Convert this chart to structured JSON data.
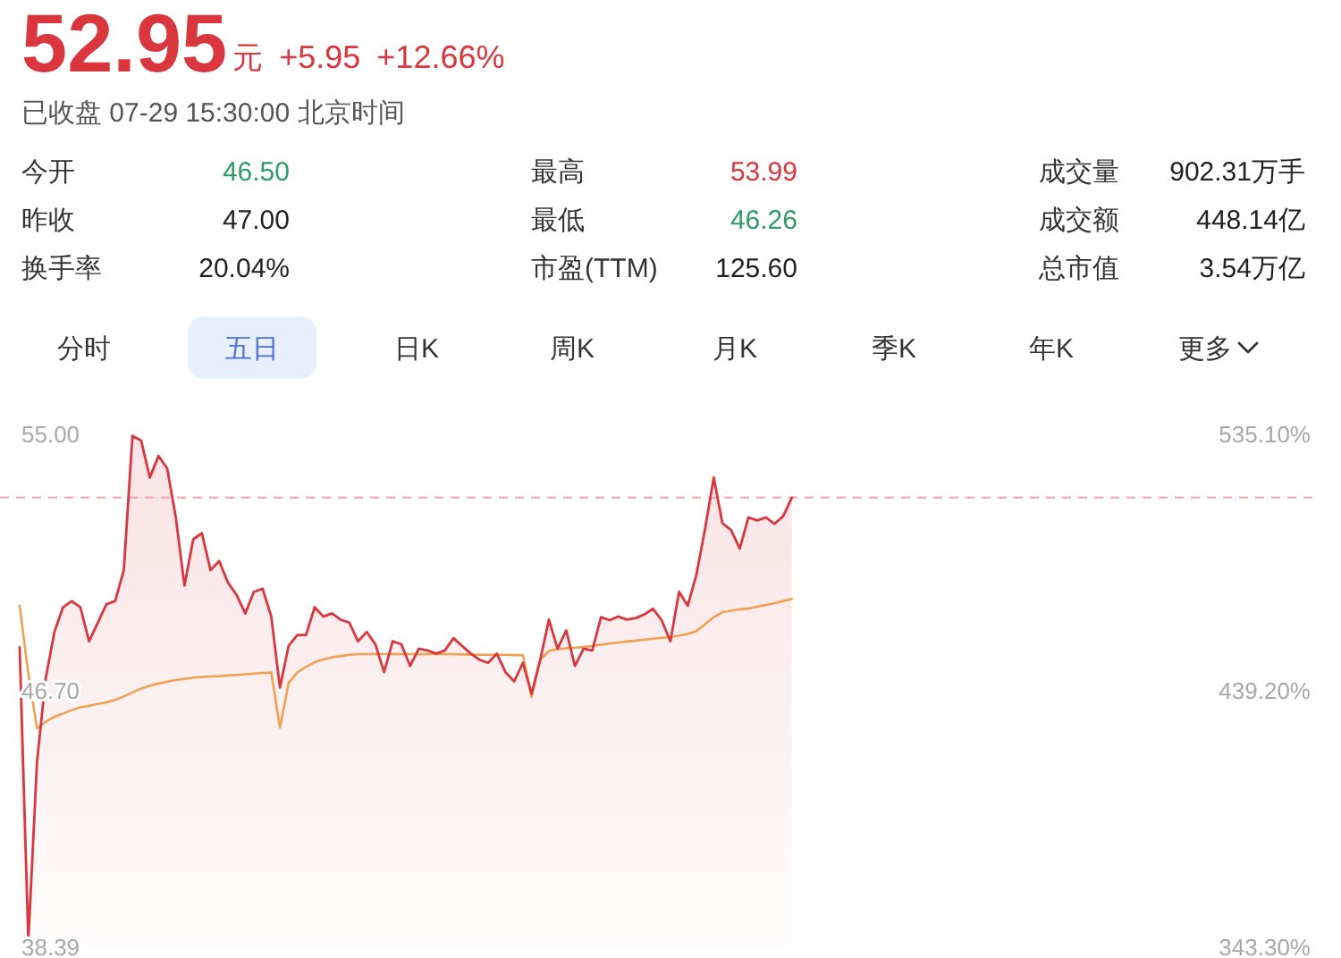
{
  "chart_data": [
    {
      "type": "other",
      "title": "52.95",
      "subtitle": "已收盘 07-29 15:30:00 北京时间",
      "annotations": [
        "元",
        "+5.95",
        "+12.66%",
        "今开",
        "46.50",
        "昨收",
        "47.00",
        "换手率",
        "20.04%",
        "最高",
        "53.99",
        "最低",
        "46.26",
        "市盈(TTM)",
        "125.60",
        "成交量",
        "902.31万手",
        "成交额",
        "448.14亿",
        "总市值",
        "3.54万亿",
        "分时",
        "五日",
        "日K",
        "周K",
        "月K",
        "季K",
        "年K",
        "更多"
      ]
    },
    {
      "type": "line",
      "categories": [
        null,
        null,
        null,
        null,
        null,
        null,
        null,
        null,
        null,
        null,
        null,
        null,
        null,
        null,
        null,
        null,
        null,
        null,
        null,
        null,
        null,
        null,
        null,
        null,
        null,
        null,
        null,
        null,
        null,
        null,
        null,
        null,
        null,
        null,
        null,
        null,
        null,
        null,
        null,
        null,
        null,
        null,
        null,
        null,
        null,
        null,
        null,
        null,
        null,
        null,
        null,
        null,
        null,
        null,
        null,
        null,
        null,
        null,
        null,
        null,
        null,
        null,
        null,
        null,
        null,
        null,
        null,
        null,
        null,
        null,
        null,
        null,
        null,
        null,
        null,
        null,
        null,
        null,
        null,
        null,
        null,
        null,
        null,
        null,
        null,
        null,
        null,
        null,
        null,
        null,
        null,
        null,
        null,
        null,
        null,
        null,
        null,
        null,
        null,
        null,
        null,
        null,
        null,
        null,
        null,
        null,
        null,
        null,
        null,
        null,
        null,
        null,
        null,
        null,
        null,
        null,
        null,
        null,
        null,
        null,
        null,
        null,
        null,
        null,
        null,
        null,
        null,
        null,
        null,
        null,
        null,
        null,
        null,
        null,
        null,
        null,
        null,
        null,
        null,
        null,
        null,
        null,
        null,
        null,
        null,
        null,
        null,
        null,
        null,
        null
      ],
      "series": [
        {
          "type": "area",
          "color": "#d9363e",
          "values": [
            48.1,
            38.6,
            44.4,
            47.1,
            48.6,
            49.4,
            49.6,
            49.4,
            48.3,
            48.9,
            49.5,
            49.6,
            50.6,
            54.95,
            54.8,
            53.6,
            54.3,
            53.9,
            52.3,
            50.1,
            51.6,
            51.8,
            50.6,
            50.9,
            50.2,
            49.8,
            49.2,
            49.9,
            50.0,
            49.1,
            46.8,
            48.15,
            48.5,
            48.5,
            49.4,
            49.1,
            49.2,
            49.0,
            48.9,
            48.3,
            48.6,
            48.2,
            47.3,
            48.3,
            48.2,
            47.5,
            48.06,
            48.0,
            47.9,
            48.0,
            48.4,
            48.15,
            47.9,
            47.7,
            47.6,
            47.9,
            47.3,
            47.0,
            47.6,
            46.6,
            47.7,
            49.0,
            48.06,
            48.65,
            47.5,
            48.06,
            48.0,
            49.08,
            48.98,
            49.1,
            49.0,
            49.05,
            49.17,
            49.35,
            48.98,
            48.3,
            49.9,
            49.45,
            50.45,
            51.94,
            53.6,
            52.12,
            51.9,
            51.3,
            52.31,
            52.21,
            52.31,
            52.1,
            52.35,
            52.95,
            null,
            null,
            null,
            null,
            null,
            null,
            null,
            null,
            null,
            null,
            null,
            null,
            null,
            null,
            null,
            null,
            null,
            null,
            null,
            null,
            null,
            null,
            null,
            null,
            null,
            null,
            null,
            null,
            null,
            null,
            null,
            null,
            null,
            null,
            null,
            null,
            null,
            null,
            null,
            null,
            null,
            null,
            null,
            null,
            null,
            null,
            null,
            null,
            null,
            null,
            null,
            null,
            null,
            null,
            null,
            null,
            null,
            null,
            null,
            null
          ]
        },
        {
          "type": "line",
          "color": "#f0a050",
          "values": [
            49.45,
            47.25,
            45.48,
            45.69,
            45.85,
            45.96,
            46.07,
            46.16,
            46.21,
            46.27,
            46.32,
            46.4,
            46.51,
            46.64,
            46.77,
            46.86,
            46.93,
            46.99,
            47.04,
            47.08,
            47.12,
            47.14,
            47.16,
            47.17,
            47.19,
            47.21,
            47.23,
            47.25,
            47.27,
            47.29,
            45.5,
            46.95,
            47.29,
            47.47,
            47.62,
            47.71,
            47.78,
            47.82,
            47.86,
            47.88,
            47.88,
            47.88,
            47.88,
            47.88,
            47.88,
            47.88,
            47.88,
            47.88,
            47.88,
            47.88,
            47.88,
            47.87,
            47.87,
            47.86,
            47.86,
            47.86,
            47.86,
            47.85,
            47.85,
            46.5,
            47.7,
            47.98,
            48.05,
            48.07,
            48.09,
            48.11,
            48.15,
            48.19,
            48.23,
            48.26,
            48.29,
            48.32,
            48.35,
            48.38,
            48.41,
            48.43,
            48.48,
            48.54,
            48.63,
            48.85,
            49.08,
            49.24,
            49.29,
            49.33,
            49.36,
            49.42,
            49.47,
            49.53,
            49.6,
            49.67,
            null,
            null,
            null,
            null,
            null,
            null,
            null,
            null,
            null,
            null,
            null,
            null,
            null,
            null,
            null,
            null,
            null,
            null,
            null,
            null,
            null,
            null,
            null,
            null,
            null,
            null,
            null,
            null,
            null,
            null,
            null,
            null,
            null,
            null,
            null,
            null,
            null,
            null,
            null,
            null,
            null,
            null,
            null,
            null,
            null,
            null,
            null,
            null,
            null,
            null,
            null,
            null,
            null,
            null,
            null,
            null,
            null,
            null,
            null,
            null
          ]
        }
      ],
      "ylim": [
        38.39,
        55
      ],
      "yticks": [
        {
          "value": 55,
          "label": "55.00"
        },
        {
          "value": 46.7,
          "label": "46.70"
        },
        {
          "value": 38.39,
          "label": "38.39"
        }
      ],
      "y2lim": [
        343.3,
        535.1
      ],
      "y2ticks": [
        {
          "value": 535.1,
          "label": "535.10%"
        },
        {
          "value": 439.2,
          "label": "439.20%"
        },
        {
          "value": 343.3,
          "label": "343.30%"
        }
      ],
      "ref_lines": [
        {
          "axis": "y",
          "value": 52.95,
          "color": "#f4a4a8",
          "line_style": "dashed"
        }
      ]
    }
  ]
}
